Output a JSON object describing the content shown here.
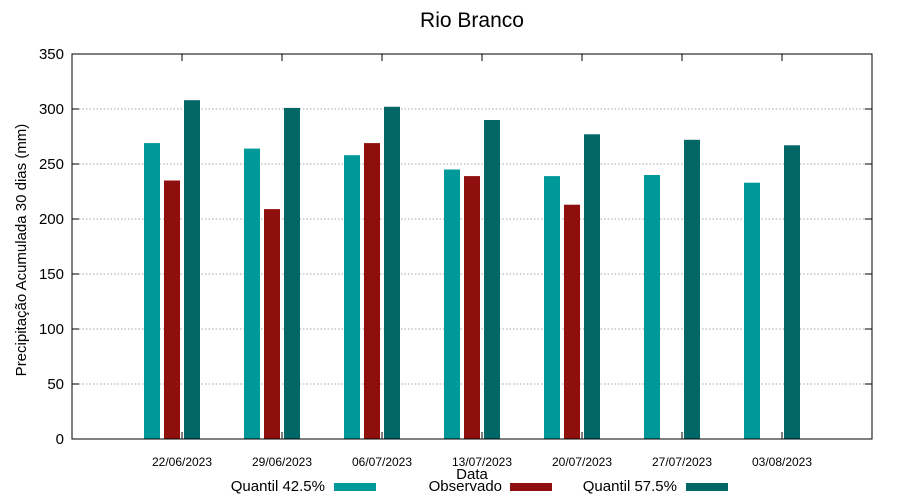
{
  "chart_data": {
    "type": "bar",
    "title": "Rio Branco",
    "xlabel": "Data",
    "ylabel": "Precipitação Acumulada 30 dias (mm)",
    "ylim": [
      0,
      350
    ],
    "yticks": [
      0,
      50,
      100,
      150,
      200,
      250,
      300,
      350
    ],
    "grid": true,
    "legend_position": "bottom",
    "categories": [
      "22/06/2023",
      "29/06/2023",
      "06/07/2023",
      "13/07/2023",
      "20/07/2023",
      "27/07/2023",
      "03/08/2023"
    ],
    "series": [
      {
        "name": "Quantil 42.5%",
        "color": "#009999",
        "values": [
          269,
          264,
          258,
          245,
          239,
          240,
          233
        ]
      },
      {
        "name": "Observado",
        "color": "#8f0e0e",
        "values": [
          235,
          209,
          269,
          239,
          213,
          null,
          null
        ]
      },
      {
        "name": "Quantil 57.5%",
        "color": "#006666",
        "values": [
          308,
          301,
          302,
          290,
          277,
          272,
          267
        ]
      }
    ]
  }
}
